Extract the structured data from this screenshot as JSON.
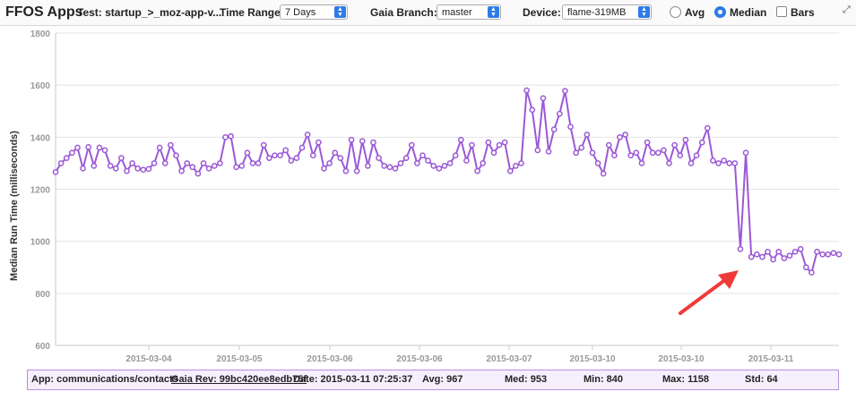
{
  "toolbar": {
    "title": "FFOS Apps",
    "test_label": "Test: startup_>_moz-app-v...",
    "time_range_label": "Time Range:",
    "time_range_value": "7 Days",
    "branch_label": "Gaia Branch:",
    "branch_value": "master",
    "device_label": "Device:",
    "device_value": "flame-319MB",
    "avg_label": "Avg",
    "median_label": "Median",
    "bars_label": "Bars",
    "selected_mode": "Median",
    "bars_checked": false,
    "expand_icon": "expand-icon"
  },
  "chart_data": {
    "type": "line",
    "title": "",
    "ylabel": "Median Run Time (milliseconds)",
    "xlabel": "",
    "ylim": [
      600,
      1800
    ],
    "yticks": [
      600,
      800,
      1000,
      1200,
      1400,
      1600,
      1800
    ],
    "xticks": [
      "2015-03-04",
      "2015-03-05",
      "2015-03-06",
      "2015-03-06",
      "2015-03-07",
      "2015-03-10",
      "2015-03-10",
      "2015-03-11"
    ],
    "grid": "horizontal",
    "series_color": "#9b59d6",
    "series": [
      {
        "values": [
          1266,
          1300,
          1320,
          1340,
          1360,
          1280,
          1362,
          1290,
          1360,
          1350,
          1290,
          1280,
          1320,
          1270,
          1300,
          1280,
          1275,
          1278,
          1300,
          1360,
          1300,
          1370,
          1330,
          1270,
          1300,
          1285,
          1260,
          1300,
          1280,
          1290,
          1300,
          1400,
          1404,
          1285,
          1290,
          1340,
          1300,
          1300,
          1370,
          1320,
          1330,
          1330,
          1350,
          1310,
          1320,
          1360,
          1410,
          1330,
          1380,
          1280,
          1300,
          1340,
          1320,
          1270,
          1390,
          1270,
          1385,
          1290,
          1380,
          1320,
          1290,
          1285,
          1280,
          1300,
          1320,
          1370,
          1300,
          1330,
          1310,
          1290,
          1280,
          1290,
          1300,
          1330,
          1390,
          1310,
          1370,
          1270,
          1300,
          1380,
          1340,
          1370,
          1380,
          1270,
          1290,
          1300,
          1580,
          1505,
          1350,
          1550,
          1345,
          1430,
          1490,
          1578,
          1440,
          1340,
          1360,
          1410,
          1340,
          1300,
          1260,
          1370,
          1330,
          1400,
          1410,
          1330,
          1340,
          1300,
          1380,
          1340,
          1340,
          1350,
          1300,
          1370,
          1330,
          1390,
          1300,
          1330,
          1380,
          1435,
          1310,
          1300,
          1310,
          1300,
          1300,
          970,
          1340,
          940,
          950,
          940,
          960,
          930,
          960,
          935,
          945,
          960,
          970,
          900,
          880,
          960,
          950,
          950,
          955,
          950
        ]
      }
    ]
  },
  "status": {
    "app": "App: communications/contacts",
    "rev": "Gaia Rev: 99bc420ee8edb75f",
    "date": "Date: 2015-03-11 07:25:37",
    "avg": "Avg: 967",
    "med": "Med: 953",
    "min": "Min: 840",
    "max": "Max: 1158",
    "std": "Std: 64"
  },
  "annotation": {
    "type": "arrow",
    "color": "#f03a3a"
  }
}
